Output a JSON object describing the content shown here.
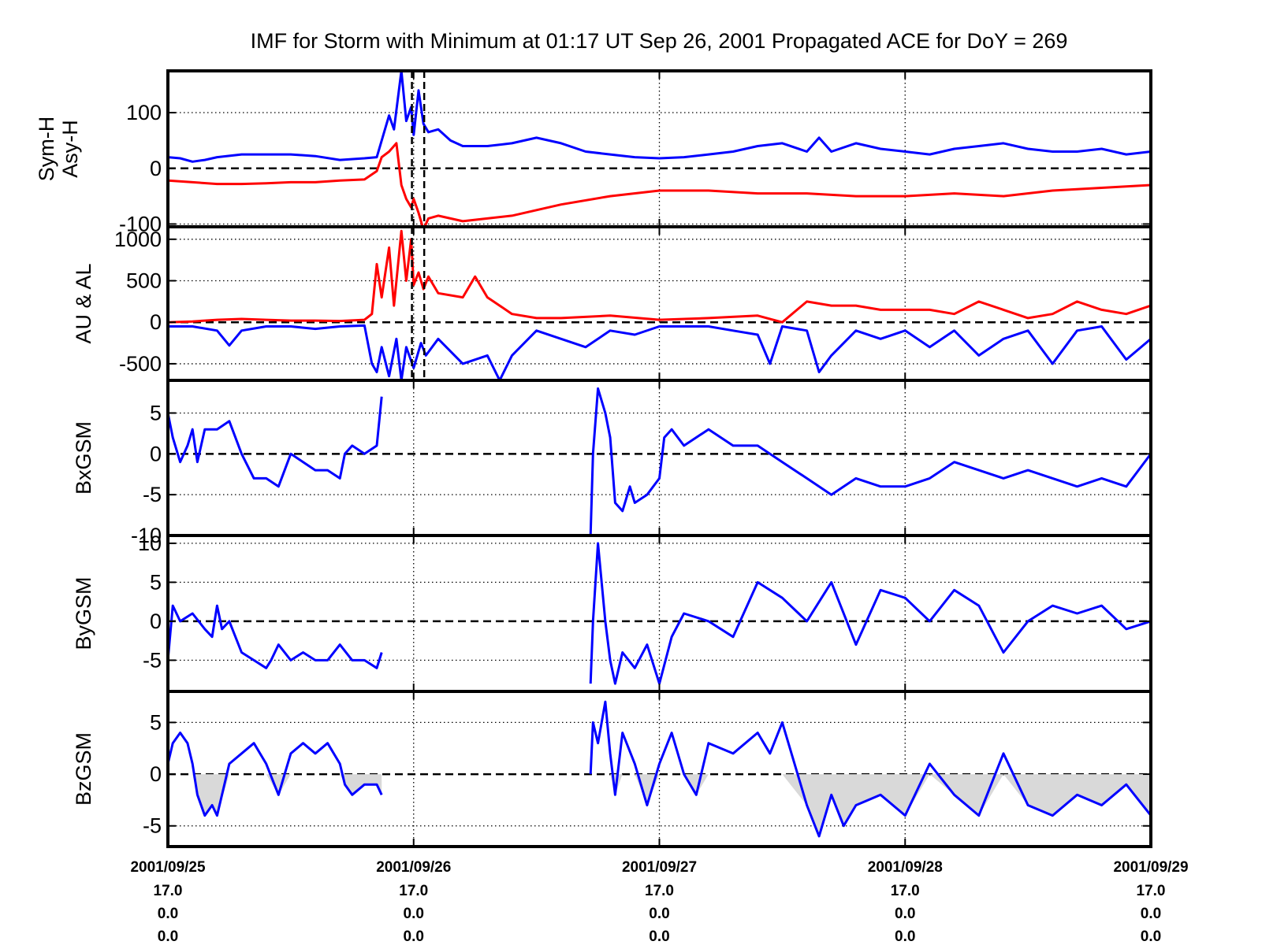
{
  "title": "IMF for Storm with Minimum at 01:17 UT Sep 26, 2001  Propagated ACE for DoY = 269",
  "colors": {
    "series_a": "#0000ff",
    "series_b": "#ff0000",
    "axes": "#000000",
    "negative_fill": "#d9d9d9"
  },
  "x_tick_labels": [
    {
      "date": "2001/09/25",
      "line2": "17.0",
      "line3": "0.0",
      "line4": "0.0"
    },
    {
      "date": "2001/09/26",
      "line2": "17.0",
      "line3": "0.0",
      "line4": "0.0"
    },
    {
      "date": "2001/09/27",
      "line2": "17.0",
      "line3": "0.0",
      "line4": "0.0"
    },
    {
      "date": "2001/09/28",
      "line2": "17.0",
      "line3": "0.0",
      "line4": "0.0"
    },
    {
      "date": "2001/09/29",
      "line2": "17.0",
      "line3": "0.0",
      "line4": "0.0"
    }
  ],
  "chart_data": [
    {
      "type": "line",
      "ylabel_lines": [
        "Sym-H",
        "Asy-H"
      ],
      "ylim": [
        -105,
        175
      ],
      "yticks": [
        {
          "v": 100,
          "label": "100"
        },
        {
          "v": 0,
          "label": "0"
        },
        {
          "v": -100,
          "label": "-100"
        }
      ],
      "xlim": [
        0,
        4
      ],
      "grid": true,
      "vlines": [
        0.993,
        1.043
      ],
      "series": [
        {
          "color": "blue",
          "x": [
            0,
            0.05,
            0.1,
            0.15,
            0.2,
            0.3,
            0.4,
            0.5,
            0.6,
            0.7,
            0.8,
            0.85,
            0.9,
            0.92,
            0.95,
            0.97,
            0.99,
            1.0,
            1.02,
            1.04,
            1.06,
            1.1,
            1.15,
            1.2,
            1.3,
            1.4,
            1.5,
            1.6,
            1.7,
            1.8,
            1.9,
            2.0,
            2.1,
            2.2,
            2.3,
            2.4,
            2.5,
            2.6,
            2.65,
            2.7,
            2.8,
            2.9,
            3.0,
            3.1,
            3.2,
            3.3,
            3.4,
            3.5,
            3.6,
            3.7,
            3.8,
            3.9,
            4.0
          ],
          "y": [
            20,
            18,
            12,
            15,
            20,
            25,
            25,
            25,
            22,
            15,
            18,
            20,
            95,
            70,
            175,
            85,
            110,
            60,
            140,
            80,
            65,
            70,
            50,
            40,
            40,
            45,
            55,
            45,
            30,
            25,
            20,
            18,
            20,
            25,
            30,
            40,
            45,
            30,
            55,
            30,
            45,
            35,
            30,
            25,
            35,
            40,
            45,
            35,
            30,
            30,
            35,
            25,
            30
          ]
        },
        {
          "color": "red",
          "x": [
            0,
            0.1,
            0.2,
            0.3,
            0.4,
            0.5,
            0.6,
            0.7,
            0.8,
            0.85,
            0.87,
            0.9,
            0.93,
            0.95,
            0.97,
            0.99,
            1.0,
            1.02,
            1.04,
            1.06,
            1.1,
            1.2,
            1.3,
            1.4,
            1.5,
            1.6,
            1.8,
            2.0,
            2.2,
            2.4,
            2.6,
            2.8,
            3.0,
            3.2,
            3.4,
            3.6,
            3.8,
            4.0
          ],
          "y": [
            -22,
            -25,
            -28,
            -28,
            -27,
            -25,
            -25,
            -22,
            -20,
            -5,
            20,
            30,
            45,
            -30,
            -55,
            -70,
            -55,
            -80,
            -110,
            -90,
            -85,
            -95,
            -90,
            -85,
            -75,
            -65,
            -50,
            -40,
            -40,
            -45,
            -45,
            -50,
            -50,
            -45,
            -50,
            -40,
            -35,
            -30
          ]
        }
      ]
    },
    {
      "type": "line",
      "ylabel_lines": [
        "AU & AL"
      ],
      "ylim": [
        -700,
        1150
      ],
      "yticks": [
        {
          "v": 1000,
          "label": "1000"
        },
        {
          "v": 500,
          "label": "500"
        },
        {
          "v": 0,
          "label": "0"
        },
        {
          "v": -500,
          "label": "-500"
        }
      ],
      "xlim": [
        0,
        4
      ],
      "grid": true,
      "vlines": [
        0.993,
        1.043
      ],
      "series": [
        {
          "color": "red",
          "x": [
            0,
            0.1,
            0.2,
            0.3,
            0.4,
            0.5,
            0.6,
            0.7,
            0.8,
            0.83,
            0.85,
            0.87,
            0.9,
            0.92,
            0.95,
            0.97,
            0.99,
            1.0,
            1.02,
            1.04,
            1.06,
            1.1,
            1.2,
            1.25,
            1.3,
            1.35,
            1.4,
            1.5,
            1.6,
            1.8,
            2.0,
            2.2,
            2.4,
            2.5,
            2.6,
            2.7,
            2.8,
            2.9,
            3.0,
            3.1,
            3.2,
            3.3,
            3.4,
            3.5,
            3.6,
            3.7,
            3.8,
            3.9,
            4.0
          ],
          "y": [
            0,
            10,
            30,
            40,
            30,
            20,
            20,
            15,
            30,
            100,
            700,
            300,
            900,
            200,
            1100,
            500,
            1000,
            450,
            600,
            400,
            550,
            350,
            300,
            550,
            300,
            200,
            100,
            50,
            50,
            80,
            30,
            50,
            80,
            0,
            250,
            200,
            200,
            150,
            150,
            150,
            100,
            250,
            150,
            50,
            100,
            250,
            150,
            100,
            200
          ]
        },
        {
          "color": "blue",
          "x": [
            0,
            0.1,
            0.2,
            0.25,
            0.3,
            0.4,
            0.5,
            0.6,
            0.7,
            0.8,
            0.83,
            0.85,
            0.87,
            0.9,
            0.93,
            0.95,
            0.97,
            1.0,
            1.03,
            1.05,
            1.1,
            1.2,
            1.3,
            1.35,
            1.4,
            1.5,
            1.6,
            1.7,
            1.8,
            1.9,
            2.0,
            2.1,
            2.2,
            2.3,
            2.4,
            2.45,
            2.5,
            2.6,
            2.65,
            2.7,
            2.8,
            2.9,
            3.0,
            3.1,
            3.2,
            3.3,
            3.4,
            3.5,
            3.6,
            3.7,
            3.8,
            3.9,
            4.0
          ],
          "y": [
            -50,
            -50,
            -100,
            -280,
            -100,
            -50,
            -50,
            -80,
            -50,
            -40,
            -500,
            -600,
            -300,
            -650,
            -200,
            -700,
            -300,
            -550,
            -250,
            -400,
            -200,
            -500,
            -400,
            -700,
            -400,
            -100,
            -200,
            -300,
            -100,
            -150,
            -50,
            -50,
            -50,
            -100,
            -150,
            -500,
            -50,
            -100,
            -600,
            -400,
            -100,
            -200,
            -100,
            -300,
            -100,
            -400,
            -200,
            -100,
            -500,
            -100,
            -50,
            -450,
            -200
          ]
        }
      ]
    },
    {
      "type": "line",
      "ylabel_lines": [
        "BxGSM"
      ],
      "ylim": [
        -10,
        9
      ],
      "yticks": [
        {
          "v": 5,
          "label": "5"
        },
        {
          "v": 0,
          "label": "0"
        },
        {
          "v": -5,
          "label": "-5"
        },
        {
          "v": -10,
          "label": "-10"
        }
      ],
      "xlim": [
        0,
        4
      ],
      "grid": true,
      "vlines": [],
      "series": [
        {
          "color": "blue",
          "x": [
            0,
            0.02,
            0.05,
            0.08,
            0.1,
            0.12,
            0.15,
            0.2,
            0.25,
            0.3,
            0.35,
            0.4,
            0.45,
            0.5,
            0.55,
            0.6,
            0.65,
            0.7,
            0.72,
            0.75,
            0.8,
            0.85,
            0.87
          ],
          "y": [
            5,
            2,
            -1,
            1,
            3,
            -1,
            3,
            3,
            4,
            0,
            -3,
            -3,
            -4,
            0,
            -1,
            -2,
            -2,
            -3,
            0,
            1,
            0,
            1,
            7
          ]
        },
        {
          "color": "blue",
          "x": [
            1.72,
            1.73,
            1.75,
            1.78,
            1.8,
            1.82,
            1.85,
            1.88,
            1.9,
            1.95,
            2.0,
            2.02,
            2.05,
            2.1,
            2.2,
            2.3,
            2.4,
            2.5,
            2.6,
            2.7,
            2.8,
            2.9,
            3.0,
            3.1,
            3.2,
            3.3,
            3.4,
            3.5,
            3.6,
            3.7,
            3.8,
            3.9,
            4.0
          ],
          "y": [
            -10,
            0,
            8,
            5,
            2,
            -6,
            -7,
            -4,
            -6,
            -5,
            -3,
            2,
            3,
            1,
            3,
            1,
            1,
            -1,
            -3,
            -5,
            -3,
            -4,
            -4,
            -3,
            -1,
            -2,
            -3,
            -2,
            -3,
            -4,
            -3,
            -4,
            0
          ]
        }
      ]
    },
    {
      "type": "line",
      "ylabel_lines": [
        "ByGSM"
      ],
      "ylim": [
        -9,
        11
      ],
      "yticks": [
        {
          "v": 10,
          "label": "10"
        },
        {
          "v": 5,
          "label": "5"
        },
        {
          "v": 0,
          "label": "0"
        },
        {
          "v": -5,
          "label": "-5"
        }
      ],
      "xlim": [
        0,
        4
      ],
      "grid": true,
      "vlines": [],
      "series": [
        {
          "color": "blue",
          "x": [
            0,
            0.02,
            0.05,
            0.1,
            0.15,
            0.18,
            0.2,
            0.22,
            0.25,
            0.3,
            0.35,
            0.4,
            0.42,
            0.45,
            0.5,
            0.55,
            0.6,
            0.65,
            0.7,
            0.75,
            0.8,
            0.85,
            0.87
          ],
          "y": [
            -5,
            2,
            0,
            1,
            -1,
            -2,
            2,
            -1,
            0,
            -4,
            -5,
            -6,
            -5,
            -3,
            -5,
            -4,
            -5,
            -5,
            -3,
            -5,
            -5,
            -6,
            -4
          ]
        },
        {
          "color": "blue",
          "x": [
            1.72,
            1.73,
            1.75,
            1.78,
            1.8,
            1.82,
            1.85,
            1.9,
            1.95,
            2.0,
            2.05,
            2.1,
            2.2,
            2.3,
            2.4,
            2.5,
            2.6,
            2.7,
            2.8,
            2.9,
            3.0,
            3.1,
            3.2,
            3.3,
            3.4,
            3.5,
            3.6,
            3.7,
            3.8,
            3.9,
            4.0
          ],
          "y": [
            -8,
            0,
            10,
            0,
            -5,
            -8,
            -4,
            -6,
            -3,
            -8,
            -2,
            1,
            0,
            -2,
            5,
            3,
            0,
            5,
            -3,
            4,
            3,
            0,
            4,
            2,
            -4,
            0,
            2,
            1,
            2,
            -1,
            0
          ]
        }
      ]
    },
    {
      "type": "area",
      "ylabel_lines": [
        "BzGSM"
      ],
      "ylim": [
        -7,
        8
      ],
      "yticks": [
        {
          "v": 5,
          "label": "5"
        },
        {
          "v": 0,
          "label": "0"
        },
        {
          "v": -5,
          "label": "-5"
        }
      ],
      "xlim": [
        0,
        4
      ],
      "grid": true,
      "vlines": [],
      "negative_fill": true,
      "series": [
        {
          "color": "blue",
          "x": [
            0,
            0.02,
            0.05,
            0.08,
            0.1,
            0.12,
            0.15,
            0.18,
            0.2,
            0.25,
            0.3,
            0.35,
            0.4,
            0.45,
            0.5,
            0.55,
            0.6,
            0.65,
            0.7,
            0.72,
            0.75,
            0.8,
            0.85,
            0.87
          ],
          "y": [
            1,
            3,
            4,
            3,
            1,
            -2,
            -4,
            -3,
            -4,
            1,
            2,
            3,
            1,
            -2,
            2,
            3,
            2,
            3,
            1,
            -1,
            -2,
            -1,
            -1,
            -2
          ]
        },
        {
          "color": "blue",
          "x": [
            1.72,
            1.73,
            1.75,
            1.78,
            1.8,
            1.82,
            1.85,
            1.9,
            1.95,
            2.0,
            2.05,
            2.1,
            2.15,
            2.2,
            2.3,
            2.4,
            2.45,
            2.5,
            2.6,
            2.65,
            2.7,
            2.75,
            2.8,
            2.9,
            3.0,
            3.1,
            3.2,
            3.3,
            3.4,
            3.5,
            3.6,
            3.7,
            3.8,
            3.9,
            4.0
          ],
          "y": [
            0,
            5,
            3,
            7,
            2,
            -2,
            4,
            1,
            -3,
            1,
            4,
            0,
            -2,
            3,
            2,
            4,
            2,
            5,
            -3,
            -6,
            -2,
            -5,
            -3,
            -2,
            -4,
            1,
            -2,
            -4,
            2,
            -3,
            -4,
            -2,
            -3,
            -1,
            -4
          ]
        }
      ]
    }
  ]
}
